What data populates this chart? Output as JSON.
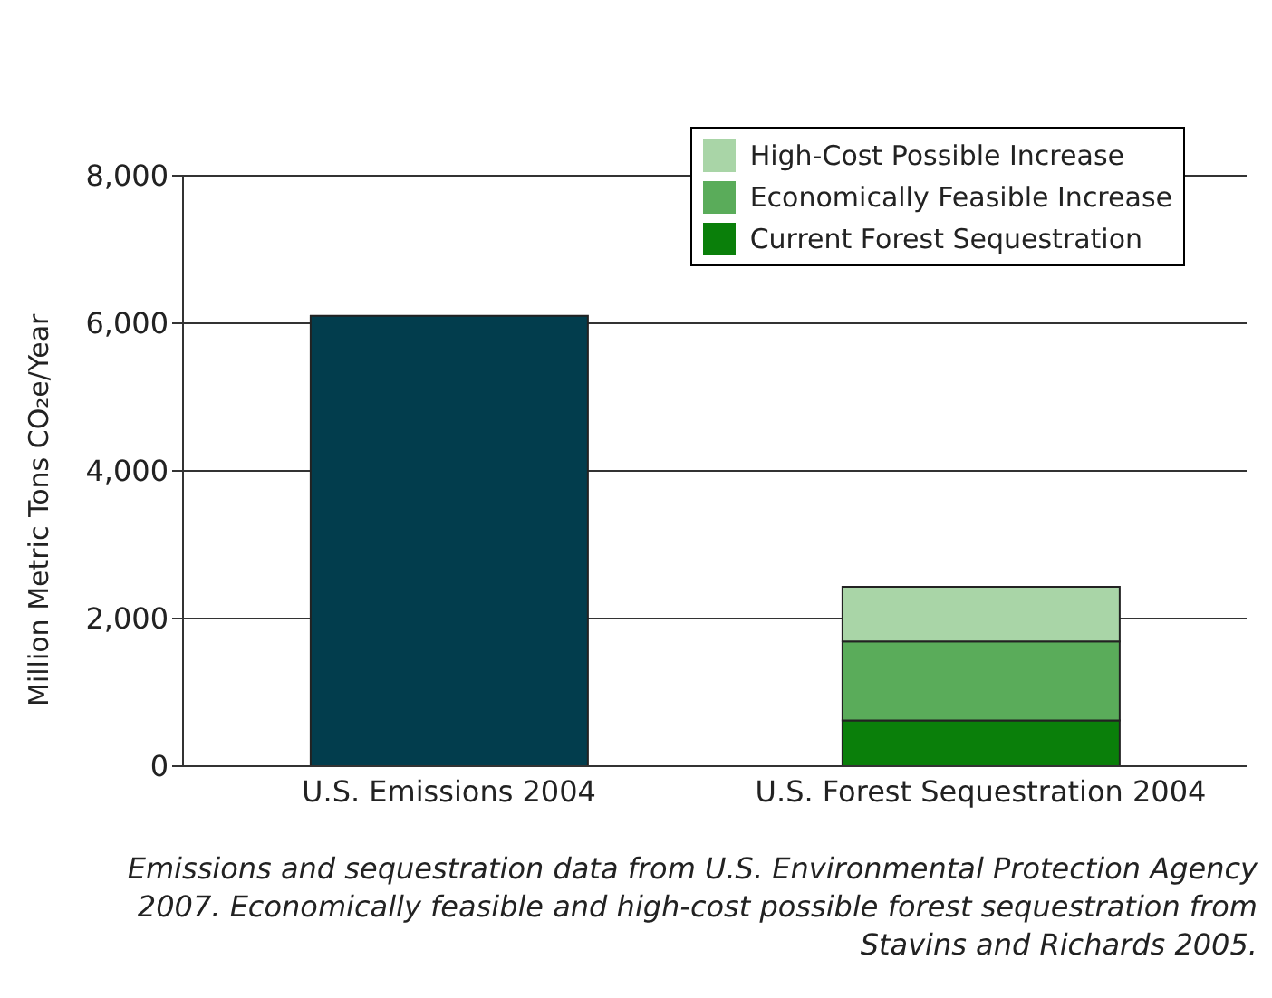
{
  "chart_data": {
    "type": "bar",
    "stacked": true,
    "ylabel": "Million Metric Tons CO₂e/Year",
    "categories": [
      "U.S. Emissions 2004",
      "U.S. Forest Sequestration 2004"
    ],
    "series": [
      {
        "color": "#023d4d",
        "values": [
          6100,
          null
        ]
      },
      {
        "name": "Current Forest Sequestration",
        "color": "#0a7f0a",
        "values": [
          null,
          620
        ]
      },
      {
        "name": "Economically Feasible Increase",
        "color": "#5aac5a",
        "values": [
          null,
          1070
        ]
      },
      {
        "name": "High-Cost Possible Increase",
        "color": "#a9d5a7",
        "values": [
          null,
          740
        ]
      }
    ],
    "ylim": [
      0,
      8000
    ],
    "yticks": [
      {
        "value": 0,
        "label": "0"
      },
      {
        "value": 2000,
        "label": "2,000"
      },
      {
        "value": 4000,
        "label": "4,000"
      },
      {
        "value": 6000,
        "label": "6,000"
      },
      {
        "value": 8000,
        "label": "8,000"
      }
    ],
    "grid": "y",
    "legend": "top right",
    "annotations": [
      "Emissions and sequestration data from U.S. Environmental Protection Agency 2007. Economically feasible and high-cost possible forest sequestration from Stavins and Richards 2005."
    ]
  }
}
